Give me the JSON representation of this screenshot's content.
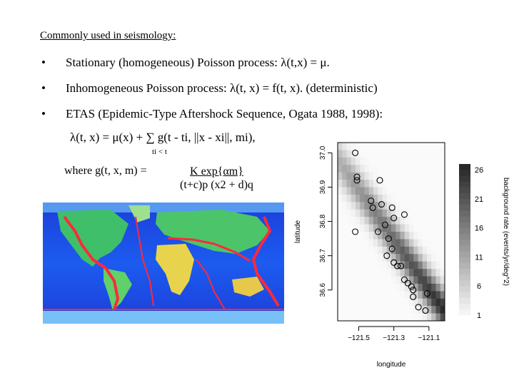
{
  "slide": {
    "heading": "Commonly used in seismology:",
    "bullet_glyph": "•",
    "bullets": [
      "Stationary (homogeneous) Poisson process: λ(t,x) = μ.",
      "Inhomogeneous Poisson process: λ(t, x) = f(t, x). (deterministic)",
      "ETAS (Epidemic-Type Aftershock Sequence, Ogata 1988, 1998):"
    ],
    "formula": "λ(t, x) = μ(x) + ∑ g(t - ti, ||x - xi||, mi),",
    "formula_sum_index": "ti < t",
    "where_text": "where g(t, x, m) =",
    "fraction_numerator": "K exp{αm}",
    "fraction_denominator": "(t+c)p (x2 + d)q"
  },
  "world_map": {
    "alt": "world seismicity map"
  },
  "chart_data": {
    "type": "heatmap",
    "xlabel": "longitude",
    "ylabel": "latitude",
    "x_ticks": [
      "−121.5",
      "−121.3",
      "−121.1"
    ],
    "y_ticks": [
      "36.6",
      "36.7",
      "36.8",
      "36.9",
      "37.0"
    ],
    "xlim": [
      -121.62,
      -121.01
    ],
    "ylim": [
      36.51,
      37.03
    ],
    "colorbar_label": "background rate (events/yr/deg^2)",
    "colorbar_ticks": [
      "1",
      "6",
      "11",
      "16",
      "21",
      "26"
    ],
    "colorbar_range": [
      1,
      27
    ],
    "events": [
      {
        "lon": -121.52,
        "lat": 37.0
      },
      {
        "lon": -121.51,
        "lat": 36.93
      },
      {
        "lon": -121.51,
        "lat": 36.92
      },
      {
        "lon": -121.38,
        "lat": 36.92
      },
      {
        "lon": -121.43,
        "lat": 36.86
      },
      {
        "lon": -121.42,
        "lat": 36.84
      },
      {
        "lon": -121.37,
        "lat": 36.85
      },
      {
        "lon": -121.31,
        "lat": 36.84
      },
      {
        "lon": -121.3,
        "lat": 36.81
      },
      {
        "lon": -121.35,
        "lat": 36.79
      },
      {
        "lon": -121.52,
        "lat": 36.77
      },
      {
        "lon": -121.39,
        "lat": 36.77
      },
      {
        "lon": -121.24,
        "lat": 36.82
      },
      {
        "lon": -121.33,
        "lat": 36.75
      },
      {
        "lon": -121.31,
        "lat": 36.72
      },
      {
        "lon": -121.34,
        "lat": 36.7
      },
      {
        "lon": -121.3,
        "lat": 36.68
      },
      {
        "lon": -121.28,
        "lat": 36.67
      },
      {
        "lon": -121.26,
        "lat": 36.67
      },
      {
        "lon": -121.24,
        "lat": 36.63
      },
      {
        "lon": -121.22,
        "lat": 36.62
      },
      {
        "lon": -121.2,
        "lat": 36.61
      },
      {
        "lon": -121.19,
        "lat": 36.6
      },
      {
        "lon": -121.19,
        "lat": 36.58
      },
      {
        "lon": -121.11,
        "lat": 36.59
      },
      {
        "lon": -121.16,
        "lat": 36.55
      },
      {
        "lon": -121.12,
        "lat": 36.54
      }
    ]
  }
}
